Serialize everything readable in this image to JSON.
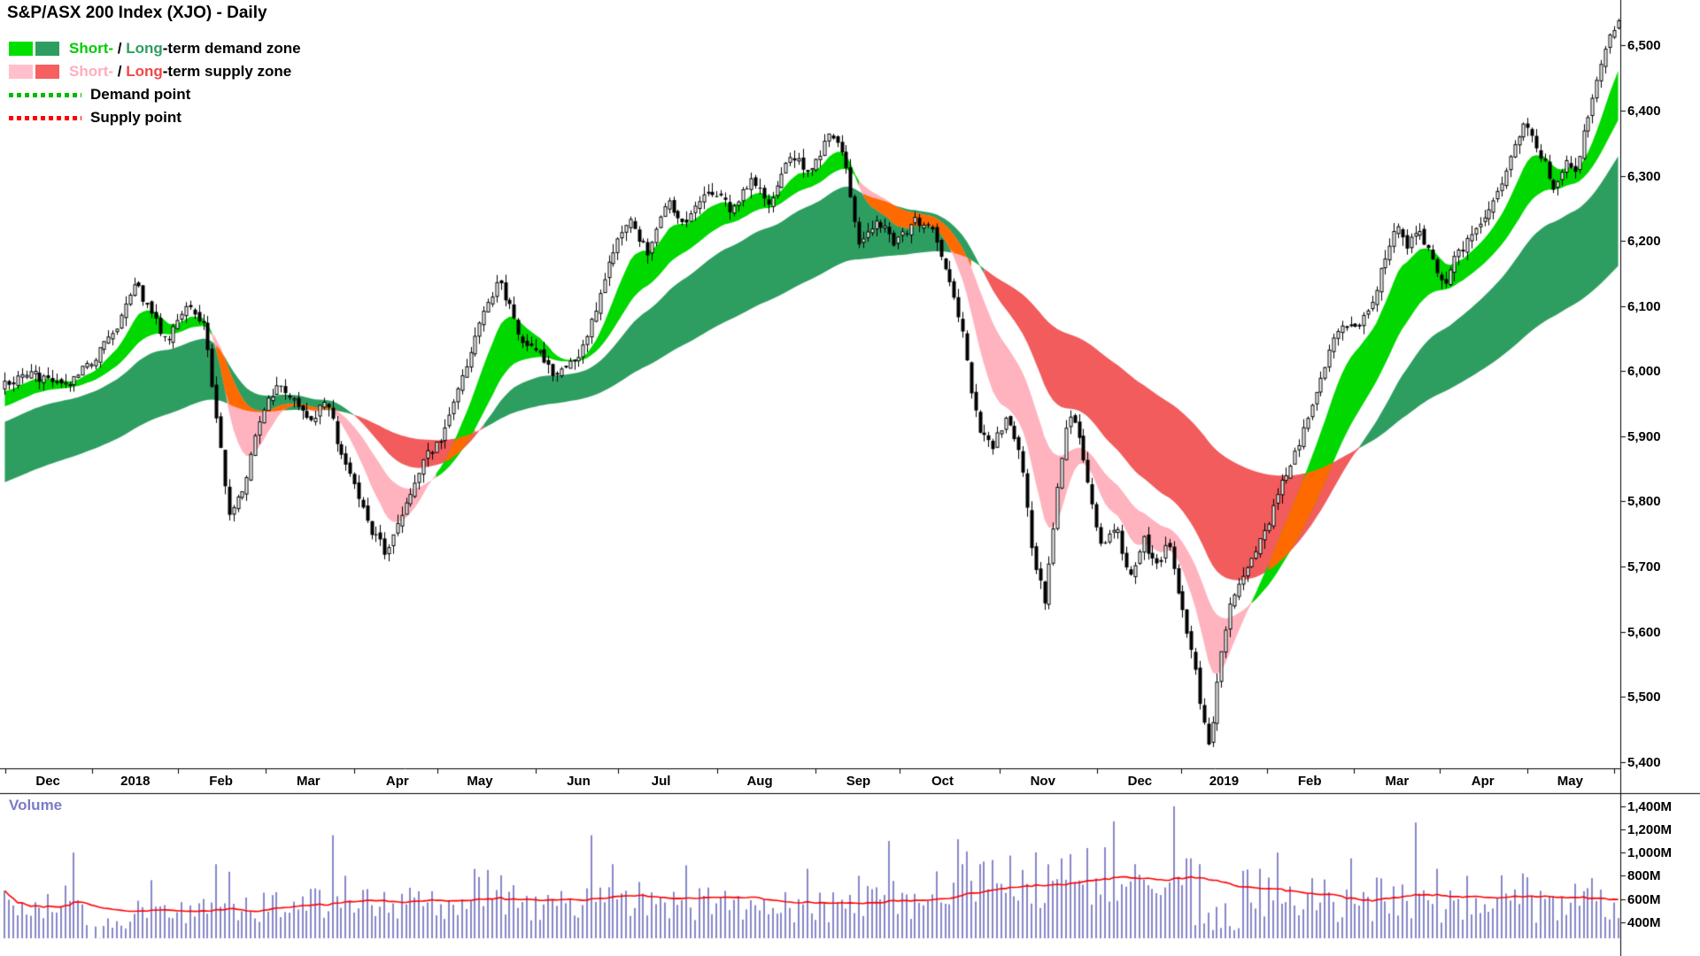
{
  "header": {
    "title": "S&P/ASX 200 Index (XJO) - Daily"
  },
  "legend": {
    "demand_zone": {
      "short": "Short-",
      "sep": " / ",
      "long": "Long",
      "rest": "-term demand zone",
      "short_color": "#00cc00",
      "long_color": "#2e9e60",
      "short_swatch": "#00e000",
      "long_swatch": "#2e9e60"
    },
    "supply_zone": {
      "short": "Short-",
      "sep": " / ",
      "long": "Long",
      "rest": "-term supply zone",
      "short_color": "#ffaebb",
      "long_color": "#f04848",
      "short_swatch": "#ffc0cb",
      "long_swatch": "#f56060"
    },
    "demand_point": {
      "label": "Demand point",
      "color": "#00bb00"
    },
    "supply_point": {
      "label": "Supply point",
      "color": "#ff0000"
    }
  },
  "volume_panel": {
    "label": "Volume",
    "label_color": "#7a7ac8"
  },
  "chart_data": {
    "type": "candlestick",
    "title": "S&P/ASX 200 Index (XJO) - Daily",
    "timeframe": "Daily",
    "x_labels": [
      "Dec",
      "2018",
      "Feb",
      "Mar",
      "Apr",
      "May",
      "Jun",
      "Jul",
      "Aug",
      "Sep",
      "Oct",
      "Nov",
      "Dec",
      "2019",
      "Feb",
      "Mar",
      "Apr",
      "May"
    ],
    "x_positions": [
      0.028,
      0.082,
      0.135,
      0.189,
      0.244,
      0.295,
      0.356,
      0.407,
      0.468,
      0.529,
      0.581,
      0.643,
      0.703,
      0.755,
      0.808,
      0.862,
      0.915,
      0.969
    ],
    "y_ticks": {
      "labels": [
        "6,500",
        "6,400",
        "6,300",
        "6,200",
        "6,100",
        "6,000",
        "5,900",
        "5,800",
        "5,700",
        "5,600",
        "5,500",
        "5,400"
      ],
      "values": [
        6500,
        6400,
        6300,
        6200,
        6100,
        6000,
        5900,
        5800,
        5700,
        5600,
        5500,
        5400
      ]
    },
    "volume_ticks": {
      "labels": [
        "1,400M",
        "1,200M",
        "1,000M",
        "800M",
        "600M",
        "400M"
      ],
      "values": [
        1400,
        1200,
        1000,
        800,
        600,
        400
      ]
    },
    "price_range": [
      5390,
      6570
    ],
    "volume_range_m": [
      260,
      1460
    ],
    "n_candles": 375,
    "price_anchors": [
      [
        0.0,
        5985
      ],
      [
        0.018,
        5995
      ],
      [
        0.038,
        5975
      ],
      [
        0.055,
        6020
      ],
      [
        0.068,
        6060
      ],
      [
        0.08,
        6135
      ],
      [
        0.09,
        6095
      ],
      [
        0.1,
        6045
      ],
      [
        0.113,
        6110
      ],
      [
        0.124,
        6065
      ],
      [
        0.131,
        5930
      ],
      [
        0.139,
        5775
      ],
      [
        0.148,
        5825
      ],
      [
        0.158,
        5930
      ],
      [
        0.17,
        5985
      ],
      [
        0.181,
        5950
      ],
      [
        0.189,
        5920
      ],
      [
        0.199,
        5960
      ],
      [
        0.209,
        5865
      ],
      [
        0.218,
        5820
      ],
      [
        0.228,
        5750
      ],
      [
        0.237,
        5720
      ],
      [
        0.248,
        5790
      ],
      [
        0.259,
        5865
      ],
      [
        0.271,
        5895
      ],
      [
        0.285,
        6000
      ],
      [
        0.297,
        6090
      ],
      [
        0.306,
        6140
      ],
      [
        0.314,
        6090
      ],
      [
        0.322,
        6040
      ],
      [
        0.331,
        6025
      ],
      [
        0.34,
        5995
      ],
      [
        0.349,
        6010
      ],
      [
        0.359,
        6035
      ],
      [
        0.369,
        6120
      ],
      [
        0.378,
        6195
      ],
      [
        0.388,
        6230
      ],
      [
        0.398,
        6180
      ],
      [
        0.41,
        6265
      ],
      [
        0.421,
        6230
      ],
      [
        0.437,
        6280
      ],
      [
        0.449,
        6250
      ],
      [
        0.462,
        6290
      ],
      [
        0.474,
        6255
      ],
      [
        0.487,
        6330
      ],
      [
        0.499,
        6305
      ],
      [
        0.511,
        6360
      ],
      [
        0.52,
        6330
      ],
      [
        0.529,
        6185
      ],
      [
        0.541,
        6230
      ],
      [
        0.552,
        6195
      ],
      [
        0.564,
        6230
      ],
      [
        0.575,
        6215
      ],
      [
        0.585,
        6145
      ],
      [
        0.594,
        6050
      ],
      [
        0.603,
        5910
      ],
      [
        0.612,
        5880
      ],
      [
        0.621,
        5935
      ],
      [
        0.63,
        5870
      ],
      [
        0.638,
        5700
      ],
      [
        0.645,
        5645
      ],
      [
        0.652,
        5820
      ],
      [
        0.659,
        5940
      ],
      [
        0.666,
        5900
      ],
      [
        0.674,
        5790
      ],
      [
        0.681,
        5725
      ],
      [
        0.689,
        5765
      ],
      [
        0.697,
        5675
      ],
      [
        0.705,
        5745
      ],
      [
        0.713,
        5695
      ],
      [
        0.721,
        5735
      ],
      [
        0.729,
        5645
      ],
      [
        0.736,
        5565
      ],
      [
        0.742,
        5475
      ],
      [
        0.747,
        5415
      ],
      [
        0.753,
        5560
      ],
      [
        0.76,
        5650
      ],
      [
        0.768,
        5695
      ],
      [
        0.776,
        5725
      ],
      [
        0.784,
        5775
      ],
      [
        0.792,
        5830
      ],
      [
        0.8,
        5880
      ],
      [
        0.808,
        5925
      ],
      [
        0.816,
        5985
      ],
      [
        0.824,
        6050
      ],
      [
        0.832,
        6075
      ],
      [
        0.839,
        6060
      ],
      [
        0.847,
        6105
      ],
      [
        0.855,
        6170
      ],
      [
        0.862,
        6230
      ],
      [
        0.869,
        6195
      ],
      [
        0.876,
        6215
      ],
      [
        0.884,
        6175
      ],
      [
        0.892,
        6130
      ],
      [
        0.901,
        6185
      ],
      [
        0.91,
        6205
      ],
      [
        0.92,
        6250
      ],
      [
        0.93,
        6300
      ],
      [
        0.941,
        6385
      ],
      [
        0.95,
        6345
      ],
      [
        0.96,
        6285
      ],
      [
        0.967,
        6320
      ],
      [
        0.973,
        6300
      ],
      [
        0.979,
        6370
      ],
      [
        0.986,
        6440
      ],
      [
        0.992,
        6495
      ],
      [
        1.0,
        6545
      ]
    ],
    "volume_spikes": [
      [
        0.043,
        1000
      ],
      [
        0.13,
        900
      ],
      [
        0.204,
        1150
      ],
      [
        0.21,
        800
      ],
      [
        0.3,
        850
      ],
      [
        0.364,
        1150
      ],
      [
        0.377,
        900
      ],
      [
        0.497,
        860
      ],
      [
        0.53,
        800
      ],
      [
        0.547,
        1100
      ],
      [
        0.594,
        900
      ],
      [
        0.63,
        850
      ],
      [
        0.655,
        950
      ],
      [
        0.688,
        1270
      ],
      [
        0.7,
        900
      ],
      [
        0.724,
        1400
      ],
      [
        0.733,
        950
      ],
      [
        0.74,
        900
      ],
      [
        0.788,
        1000
      ],
      [
        0.835,
        950
      ],
      [
        0.874,
        1260
      ],
      [
        0.887,
        860
      ],
      [
        0.94,
        820
      ],
      [
        0.985,
        780
      ]
    ],
    "holiday_dips": [
      0.065,
      0.752
    ],
    "busy_ranges": [
      [
        0.575,
        0.78,
        1.3
      ]
    ],
    "bands": {
      "short_emas": [
        10,
        25
      ],
      "long_emas": [
        40,
        110
      ],
      "colors": {
        "short_demand": "#00d800",
        "short_supply": "#ffb3be",
        "long_demand": "#2e9e60",
        "long_supply": "#f25c5c",
        "overlap": "#ff6a00"
      }
    },
    "candle_colors": {
      "up_fill": "#ffffff",
      "down_fill": "#000000",
      "outline": "#000000"
    },
    "volume_style": {
      "bar_color": "#8787c9",
      "ma_color": "#ff0000"
    }
  }
}
